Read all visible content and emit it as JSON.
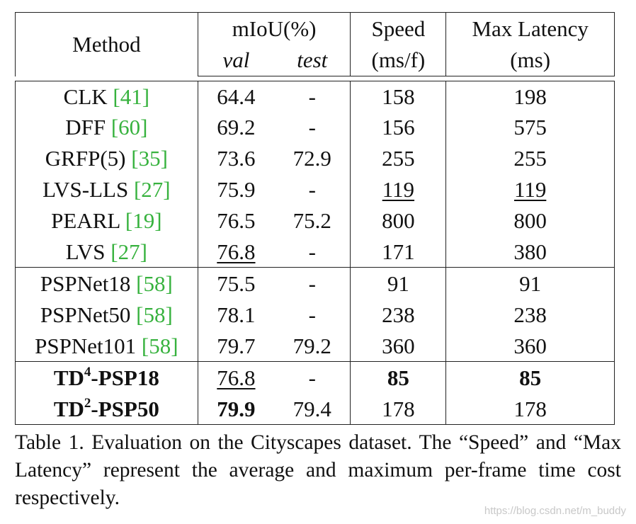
{
  "table": {
    "header": {
      "method": "Method",
      "miou": "mIoU(%)",
      "val": "val",
      "test": "test",
      "speed": "Speed",
      "speed_unit": "(ms/f)",
      "latency": "Max Latency",
      "latency_unit": "(ms)"
    },
    "rows": [
      {
        "name": "CLK ",
        "cite": "[41]",
        "val": "64.4",
        "test": "-",
        "speed": "158",
        "latency": "198"
      },
      {
        "name": "DFF ",
        "cite": "[60]",
        "val": "69.2",
        "test": "-",
        "speed": "156",
        "latency": "575"
      },
      {
        "name": "GRFP(5) ",
        "cite": "[35]",
        "val": "73.6",
        "test": "72.9",
        "speed": "255",
        "latency": "255"
      },
      {
        "name": "LVS-LLS ",
        "cite": "[27]",
        "val": "75.9",
        "test": "-",
        "speed": "119",
        "latency": "119"
      },
      {
        "name": "PEARL ",
        "cite": "[19]",
        "val": "76.5",
        "test": "75.2",
        "speed": "800",
        "latency": "800"
      },
      {
        "name": "LVS ",
        "cite": "[27]",
        "val": "76.8",
        "test": "-",
        "speed": "171",
        "latency": "380"
      },
      {
        "name": "PSPNet18 ",
        "cite": "[58]",
        "val": "75.5",
        "test": "-",
        "speed": "91",
        "latency": "91"
      },
      {
        "name": "PSPNet50 ",
        "cite": "[58]",
        "val": "78.1",
        "test": "-",
        "speed": "238",
        "latency": "238"
      },
      {
        "name": "PSPNet101 ",
        "cite": "[58]",
        "val": "79.7",
        "test": "79.2",
        "speed": "360",
        "latency": "360"
      },
      {
        "name_pre": "TD",
        "name_sup": "4",
        "name_post": "-PSP18",
        "val": "76.8",
        "test": "-",
        "speed": "85",
        "latency": "85"
      },
      {
        "name_pre": "TD",
        "name_sup": "2",
        "name_post": "-PSP50",
        "val": "79.9",
        "test": "79.4",
        "speed": "178",
        "latency": "178"
      }
    ]
  },
  "caption": "Table 1. Evaluation on the Cityscapes dataset.  The “Speed” and “Max Latency” represent the average and maximum per-frame time cost respectively.",
  "watermark": "https://blog.csdn.net/m_buddy",
  "colors": {
    "citation": "#37b23e",
    "rule": "#222222",
    "watermark": "#c8c8c8"
  }
}
